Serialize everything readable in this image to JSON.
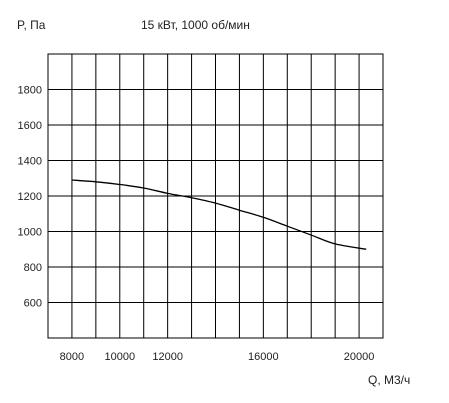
{
  "chart_data": {
    "type": "line",
    "title": "15 кВт, 1000 об/мин",
    "xlabel": "Q, М3/ч",
    "ylabel": "P, Па",
    "xlim": [
      7000,
      21000
    ],
    "ylim": [
      400,
      2000
    ],
    "x_ticks": [
      8000,
      10000,
      12000,
      16000,
      20000
    ],
    "x_tick_labels": [
      "8000",
      "10000",
      "12000",
      "16000",
      "20000"
    ],
    "y_ticks": [
      600,
      800,
      1000,
      1200,
      1400,
      1600,
      1800
    ],
    "y_tick_labels": [
      "600",
      "800",
      "1000",
      "1200",
      "1400",
      "1600",
      "1800"
    ],
    "grid": true,
    "series": [
      {
        "color": "#000000",
        "x": [
          8000,
          9000,
          10000,
          11000,
          12000,
          13000,
          14000,
          15000,
          16000,
          17000,
          18000,
          19000,
          20300
        ],
        "y": [
          1290,
          1280,
          1265,
          1245,
          1215,
          1190,
          1160,
          1120,
          1080,
          1030,
          980,
          930,
          900
        ]
      }
    ]
  }
}
